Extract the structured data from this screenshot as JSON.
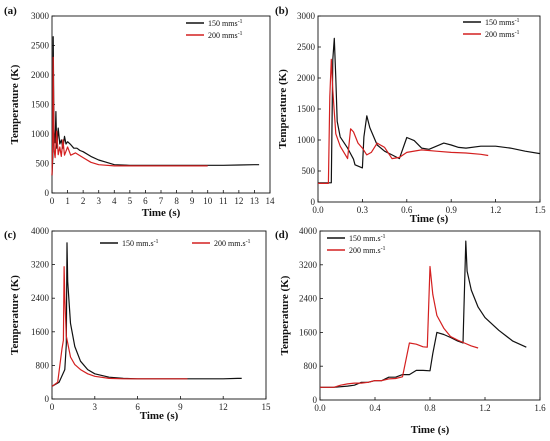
{
  "colors": {
    "black_series": "#111111",
    "red_series": "#d42020"
  },
  "chart_data": [
    {
      "panel": "(a)",
      "type": "line",
      "xlabel": "Time (s)",
      "ylabel": "Temperature (K)",
      "xlim": [
        0,
        14
      ],
      "ylim": [
        0,
        3000
      ],
      "xticks": [
        "0",
        "1",
        "2",
        "3",
        "4",
        "5",
        "6",
        "7",
        "8",
        "9",
        "10",
        "11",
        "12",
        "13",
        "14"
      ],
      "yticks": [
        "0",
        "500",
        "1000",
        "1500",
        "2000",
        "2500",
        "3000"
      ],
      "legend_position": "top-right",
      "series": [
        {
          "name": "150 mms",
          "name_sup": "-1",
          "color": "black",
          "x": [
            0,
            0.05,
            0.08,
            0.1,
            0.12,
            0.15,
            0.2,
            0.25,
            0.3,
            0.35,
            0.4,
            0.5,
            0.6,
            0.7,
            0.8,
            0.9,
            1.0,
            1.2,
            1.4,
            1.6,
            1.8,
            2.0,
            2.5,
            3.0,
            3.5,
            4.0,
            5,
            6,
            7,
            8,
            9,
            10,
            11,
            12,
            13,
            13.3
          ],
          "y": [
            300,
            600,
            2650,
            1800,
            1100,
            900,
            850,
            1380,
            760,
            920,
            1100,
            830,
            900,
            760,
            960,
            830,
            870,
            820,
            760,
            760,
            720,
            700,
            620,
            560,
            520,
            480,
            470,
            470,
            470,
            470,
            470,
            470,
            470,
            475,
            480,
            480
          ]
        },
        {
          "name": "200 mms",
          "name_sup": "-1",
          "color": "red",
          "x": [
            0,
            0.05,
            0.08,
            0.1,
            0.12,
            0.15,
            0.2,
            0.3,
            0.4,
            0.5,
            0.6,
            0.7,
            0.8,
            1.0,
            1.2,
            1.5,
            2.0,
            2.5,
            3.0,
            4,
            5,
            6,
            7,
            8,
            9,
            10
          ],
          "y": [
            300,
            900,
            2300,
            1400,
            950,
            700,
            600,
            1050,
            650,
            780,
            620,
            900,
            640,
            780,
            640,
            680,
            600,
            520,
            480,
            460,
            460,
            460,
            460,
            460,
            460,
            460
          ]
        }
      ]
    },
    {
      "panel": "(b)",
      "type": "line",
      "xlabel": "Time (s)",
      "ylabel": "Temperature (K)",
      "xlim": [
        0,
        1.5
      ],
      "ylim": [
        0,
        3000
      ],
      "xticks": [
        "0.0",
        "0.3",
        "0.6",
        "0.9",
        "1.2",
        "1.5"
      ],
      "yticks": [
        "0",
        "500",
        "1000",
        "1500",
        "2000",
        "2500",
        "3000"
      ],
      "legend_position": "top-right",
      "series": [
        {
          "name": "150 mms",
          "name_sup": "-1",
          "color": "black",
          "x": [
            0,
            0.09,
            0.1,
            0.11,
            0.12,
            0.13,
            0.15,
            0.2,
            0.24,
            0.25,
            0.3,
            0.31,
            0.33,
            0.35,
            0.4,
            0.45,
            0.5,
            0.55,
            0.6,
            0.65,
            0.7,
            0.75,
            0.8,
            0.85,
            0.9,
            0.95,
            1.0,
            1.1,
            1.2,
            1.3,
            1.4,
            1.5
          ],
          "y": [
            310,
            310,
            2300,
            2640,
            2000,
            1300,
            1050,
            870,
            690,
            600,
            550,
            1050,
            1390,
            1200,
            920,
            820,
            760,
            700,
            1040,
            990,
            870,
            850,
            900,
            950,
            920,
            880,
            870,
            900,
            900,
            870,
            820,
            780
          ]
        },
        {
          "name": "200 mms",
          "name_sup": "-1",
          "color": "red",
          "x": [
            0,
            0.07,
            0.08,
            0.09,
            0.1,
            0.12,
            0.15,
            0.18,
            0.2,
            0.22,
            0.24,
            0.27,
            0.3,
            0.33,
            0.36,
            0.4,
            0.45,
            0.5,
            0.55,
            0.6,
            0.7,
            0.8,
            0.9,
            1.0,
            1.1,
            1.15
          ],
          "y": [
            300,
            300,
            1700,
            2300,
            1800,
            1100,
            900,
            780,
            700,
            1180,
            1130,
            950,
            870,
            760,
            800,
            950,
            880,
            700,
            720,
            800,
            840,
            820,
            800,
            790,
            770,
            750
          ]
        }
      ]
    },
    {
      "panel": "(c)",
      "type": "line",
      "xlabel": "Time (s)",
      "ylabel": "Temperature (K)",
      "xlim": [
        0,
        15
      ],
      "ylim": [
        0,
        4000
      ],
      "xticks": [
        "0",
        "3",
        "6",
        "9",
        "12",
        "15"
      ],
      "yticks": [
        "0",
        "800",
        "1600",
        "2400",
        "3200",
        "4000"
      ],
      "legend_position": "top",
      "series": [
        {
          "name": "150 mm.s",
          "name_sup": "-1",
          "color": "black",
          "x": [
            0,
            0.5,
            0.9,
            1.0,
            1.05,
            1.1,
            1.3,
            1.6,
            2.0,
            2.5,
            3.0,
            4,
            5,
            6,
            7,
            8,
            9,
            10,
            11,
            12,
            13,
            13.3
          ],
          "y": [
            300,
            400,
            700,
            1300,
            3720,
            2800,
            1800,
            1250,
            900,
            700,
            600,
            520,
            490,
            480,
            480,
            480,
            480,
            480,
            480,
            480,
            490,
            490
          ]
        },
        {
          "name": "200 mm.s",
          "name_sup": "-1",
          "color": "red",
          "x": [
            0,
            0.4,
            0.7,
            0.8,
            0.85,
            0.9,
            1.0,
            1.3,
            1.6,
            2.0,
            2.5,
            3.0,
            4,
            5,
            6,
            7,
            8,
            9,
            9.5
          ],
          "y": [
            300,
            400,
            1200,
            1400,
            3150,
            2400,
            1500,
            1000,
            820,
            700,
            600,
            540,
            490,
            480,
            480,
            480,
            480,
            480,
            480
          ]
        }
      ]
    },
    {
      "panel": "(d)",
      "type": "line",
      "xlabel": "Time (s)",
      "ylabel": "Temperature (K)",
      "xlim": [
        0,
        1.6
      ],
      "ylim": [
        0,
        4000
      ],
      "xticks": [
        "0.0",
        "0.4",
        "0.8",
        "1.2",
        "1.6"
      ],
      "yticks": [
        "0",
        "800",
        "1600",
        "2400",
        "3200",
        "4000"
      ],
      "legend_position": "top-left",
      "series": [
        {
          "name": "150 mm.s",
          "name_sup": "-1",
          "color": "black",
          "x": [
            0,
            0.1,
            0.2,
            0.25,
            0.3,
            0.35,
            0.4,
            0.45,
            0.5,
            0.55,
            0.6,
            0.65,
            0.7,
            0.75,
            0.8,
            0.82,
            0.85,
            0.9,
            0.95,
            1.0,
            1.04,
            1.06,
            1.07,
            1.1,
            1.15,
            1.2,
            1.3,
            1.4,
            1.5
          ],
          "y": [
            300,
            300,
            330,
            350,
            420,
            420,
            460,
            460,
            540,
            540,
            600,
            600,
            700,
            700,
            690,
            1100,
            1600,
            1550,
            1480,
            1400,
            1350,
            3760,
            3050,
            2600,
            2200,
            1950,
            1650,
            1400,
            1250
          ]
        },
        {
          "name": "200 mm.s",
          "name_sup": "-1",
          "color": "red",
          "x": [
            0,
            0.1,
            0.15,
            0.2,
            0.25,
            0.3,
            0.35,
            0.4,
            0.45,
            0.5,
            0.55,
            0.6,
            0.65,
            0.7,
            0.75,
            0.78,
            0.8,
            0.82,
            0.85,
            0.9,
            0.95,
            1.0,
            1.05,
            1.1,
            1.15
          ],
          "y": [
            300,
            300,
            350,
            380,
            400,
            400,
            420,
            460,
            460,
            500,
            510,
            550,
            1350,
            1320,
            1260,
            1250,
            3160,
            2500,
            2000,
            1700,
            1500,
            1420,
            1350,
            1280,
            1230
          ]
        }
      ]
    }
  ]
}
